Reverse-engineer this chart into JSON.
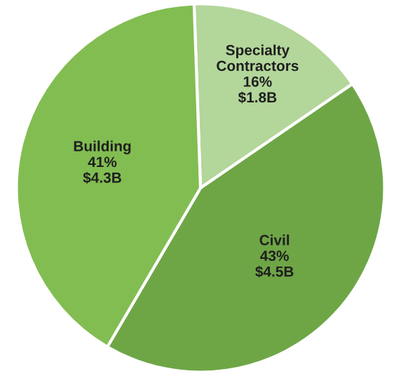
{
  "chart_data": {
    "type": "pie",
    "categories": [
      "Specialty Contractors",
      "Civil",
      "Building"
    ],
    "values": [
      16,
      43,
      41
    ],
    "value_labels": [
      "16%\n$1.8B",
      "43%\n$4.5B",
      "41%\n$4.3B"
    ],
    "colors": [
      "#b3d69a",
      "#6ea646",
      "#82bd52"
    ],
    "legend": false
  }
}
